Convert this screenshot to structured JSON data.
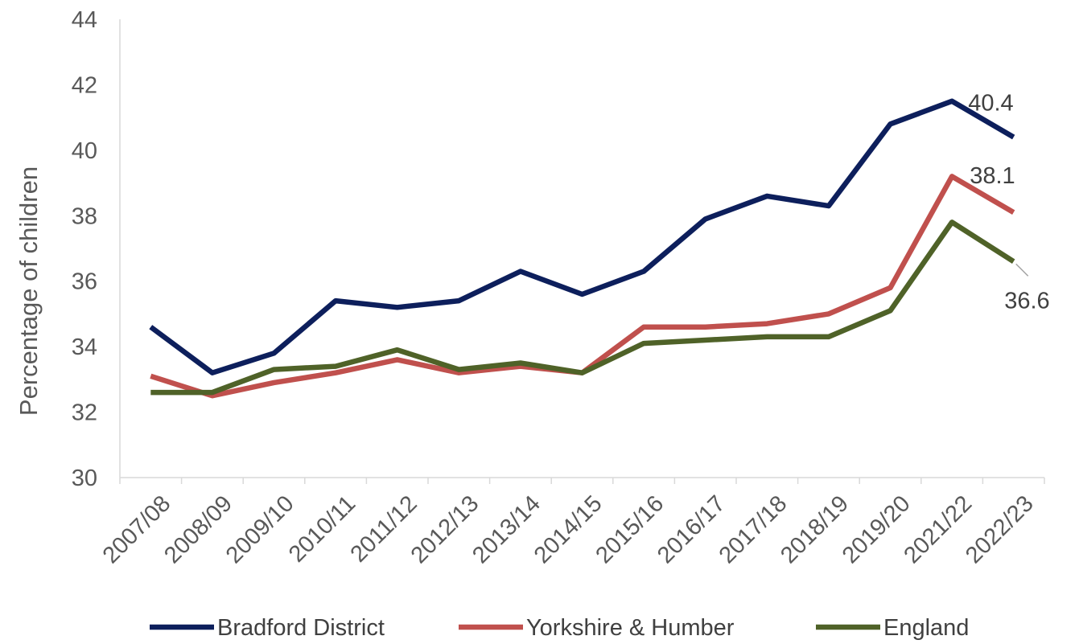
{
  "chart_data": {
    "type": "line",
    "title": "",
    "xlabel": "",
    "ylabel": "Percentage of children",
    "ylim": [
      30,
      44
    ],
    "ytick_step": 2,
    "yticks": [
      "30",
      "32",
      "34",
      "36",
      "38",
      "40",
      "42",
      "44"
    ],
    "grid": false,
    "legend_position": "bottom",
    "categories": [
      "2007/08",
      "2008/09",
      "2009/10",
      "2010/11",
      "2011/12",
      "2012/13",
      "2013/14",
      "2014/15",
      "2015/16",
      "2016/17",
      "2017/18",
      "2018/19",
      "2019/20",
      "2021/22",
      "2022/23"
    ],
    "series": [
      {
        "name": "Bradford District",
        "color": "#0d1f5c",
        "values": [
          34.6,
          33.2,
          33.8,
          35.4,
          35.2,
          35.4,
          36.3,
          35.6,
          36.3,
          37.9,
          38.6,
          38.3,
          40.8,
          41.5,
          40.4
        ],
        "end_label": "40.4"
      },
      {
        "name": "Yorkshire & Humber",
        "color": "#c0504d",
        "values": [
          33.1,
          32.5,
          32.9,
          33.2,
          33.6,
          33.2,
          33.4,
          33.2,
          34.6,
          34.6,
          34.7,
          35.0,
          35.8,
          39.2,
          38.1
        ],
        "end_label": "38.1"
      },
      {
        "name": "England",
        "color": "#4f6228",
        "values": [
          32.6,
          32.6,
          33.3,
          33.4,
          33.9,
          33.3,
          33.5,
          33.2,
          34.1,
          34.2,
          34.3,
          34.3,
          35.1,
          37.8,
          36.6
        ],
        "end_label": "36.6"
      }
    ]
  }
}
